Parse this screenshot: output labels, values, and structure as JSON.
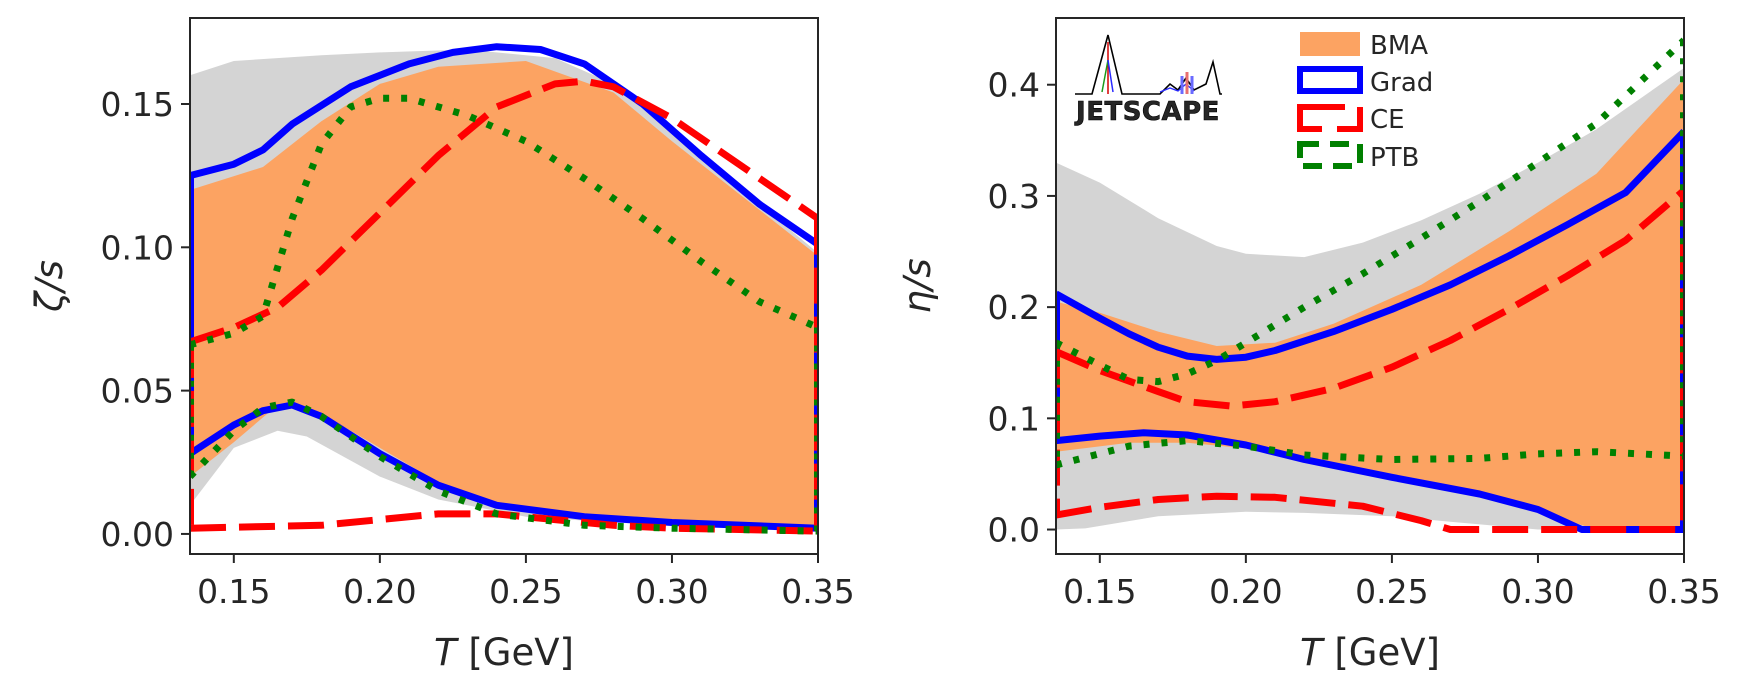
{
  "chart_data": [
    {
      "id": "zeta",
      "type": "area",
      "xlabel_var": "T",
      "xlabel_unit": " [GeV]",
      "ylabel": "ζ/s",
      "xlim": [
        0.135,
        0.35
      ],
      "ylim": [
        -0.007,
        0.18
      ],
      "xticks": [
        0.15,
        0.2,
        0.25,
        0.3,
        0.35
      ],
      "xtick_labels": [
        "0.15",
        "0.20",
        "0.25",
        "0.30",
        "0.35"
      ],
      "yticks": [
        0.0,
        0.05,
        0.1,
        0.15
      ],
      "ytick_labels": [
        "0.00",
        "0.05",
        "0.10",
        "0.15"
      ],
      "grid": false,
      "bands": [
        {
          "name": "prior",
          "color": "#d4d4d4",
          "upper": [
            [
              0.135,
              0.16
            ],
            [
              0.15,
              0.165
            ],
            [
              0.18,
              0.167
            ],
            [
              0.2,
              0.168
            ],
            [
              0.23,
              0.169
            ],
            [
              0.26,
              0.166
            ],
            [
              0.28,
              0.157
            ],
            [
              0.3,
              0.14
            ],
            [
              0.33,
              0.115
            ],
            [
              0.35,
              0.098
            ]
          ],
          "lower": [
            [
              0.135,
              0.01
            ],
            [
              0.15,
              0.03
            ],
            [
              0.165,
              0.036
            ],
            [
              0.175,
              0.034
            ],
            [
              0.2,
              0.02
            ],
            [
              0.22,
              0.012
            ],
            [
              0.25,
              0.006
            ],
            [
              0.28,
              0.004
            ],
            [
              0.3,
              0.003
            ],
            [
              0.35,
              0.002
            ]
          ]
        },
        {
          "name": "BMA",
          "color": "#fca362",
          "upper": [
            [
              0.135,
              0.12
            ],
            [
              0.16,
              0.128
            ],
            [
              0.18,
              0.144
            ],
            [
              0.2,
              0.157
            ],
            [
              0.22,
              0.163
            ],
            [
              0.25,
              0.165
            ],
            [
              0.28,
              0.154
            ],
            [
              0.3,
              0.137
            ],
            [
              0.33,
              0.113
            ],
            [
              0.35,
              0.097
            ]
          ],
          "lower": [
            [
              0.135,
              0.02
            ],
            [
              0.15,
              0.032
            ],
            [
              0.165,
              0.045
            ],
            [
              0.17,
              0.046
            ],
            [
              0.18,
              0.042
            ],
            [
              0.2,
              0.03
            ],
            [
              0.23,
              0.012
            ],
            [
              0.25,
              0.008
            ],
            [
              0.3,
              0.003
            ],
            [
              0.35,
              0.002
            ]
          ]
        }
      ],
      "series": [
        {
          "name": "Grad",
          "color": "#0000ff",
          "style": "solid",
          "upper": [
            [
              0.135,
              0.125
            ],
            [
              0.15,
              0.129
            ],
            [
              0.16,
              0.134
            ],
            [
              0.17,
              0.143
            ],
            [
              0.19,
              0.156
            ],
            [
              0.21,
              0.164
            ],
            [
              0.225,
              0.168
            ],
            [
              0.24,
              0.17
            ],
            [
              0.255,
              0.169
            ],
            [
              0.27,
              0.164
            ],
            [
              0.29,
              0.15
            ],
            [
              0.31,
              0.132
            ],
            [
              0.33,
              0.115
            ],
            [
              0.35,
              0.101
            ]
          ],
          "lower": [
            [
              0.135,
              0.028
            ],
            [
              0.15,
              0.038
            ],
            [
              0.16,
              0.043
            ],
            [
              0.17,
              0.045
            ],
            [
              0.18,
              0.041
            ],
            [
              0.2,
              0.028
            ],
            [
              0.22,
              0.017
            ],
            [
              0.24,
              0.01
            ],
            [
              0.27,
              0.006
            ],
            [
              0.3,
              0.004
            ],
            [
              0.35,
              0.002
            ]
          ]
        },
        {
          "name": "CE",
          "color": "#ff0000",
          "style": "dashed",
          "upper": [
            [
              0.135,
              0.067
            ],
            [
              0.15,
              0.072
            ],
            [
              0.165,
              0.079
            ],
            [
              0.18,
              0.092
            ],
            [
              0.2,
              0.112
            ],
            [
              0.22,
              0.132
            ],
            [
              0.24,
              0.149
            ],
            [
              0.26,
              0.157
            ],
            [
              0.27,
              0.158
            ],
            [
              0.28,
              0.156
            ],
            [
              0.3,
              0.145
            ],
            [
              0.32,
              0.131
            ],
            [
              0.35,
              0.11
            ]
          ],
          "lower": [
            [
              0.135,
              0.002
            ],
            [
              0.18,
              0.003
            ],
            [
              0.2,
              0.005
            ],
            [
              0.22,
              0.007
            ],
            [
              0.24,
              0.007
            ],
            [
              0.26,
              0.005
            ],
            [
              0.28,
              0.003
            ],
            [
              0.3,
              0.002
            ],
            [
              0.35,
              0.001
            ]
          ]
        },
        {
          "name": "PTB",
          "color": "#008000",
          "style": "dotted",
          "upper": [
            [
              0.135,
              0.066
            ],
            [
              0.15,
              0.07
            ],
            [
              0.16,
              0.076
            ],
            [
              0.17,
              0.11
            ],
            [
              0.18,
              0.136
            ],
            [
              0.19,
              0.149
            ],
            [
              0.2,
              0.152
            ],
            [
              0.21,
              0.152
            ],
            [
              0.23,
              0.146
            ],
            [
              0.25,
              0.137
            ],
            [
              0.27,
              0.124
            ],
            [
              0.29,
              0.11
            ],
            [
              0.31,
              0.095
            ],
            [
              0.33,
              0.081
            ],
            [
              0.35,
              0.072
            ]
          ],
          "lower": [
            [
              0.135,
              0.02
            ],
            [
              0.15,
              0.036
            ],
            [
              0.16,
              0.044
            ],
            [
              0.17,
              0.046
            ],
            [
              0.18,
              0.041
            ],
            [
              0.2,
              0.027
            ],
            [
              0.22,
              0.015
            ],
            [
              0.24,
              0.007
            ],
            [
              0.27,
              0.003
            ],
            [
              0.3,
              0.002
            ],
            [
              0.35,
              0.001
            ]
          ]
        }
      ]
    },
    {
      "id": "eta",
      "type": "area",
      "xlabel_var": "T",
      "xlabel_unit": " [GeV]",
      "ylabel": "η/s",
      "xlim": [
        0.135,
        0.35
      ],
      "ylim": [
        -0.022,
        0.46
      ],
      "xticks": [
        0.15,
        0.2,
        0.25,
        0.3,
        0.35
      ],
      "xtick_labels": [
        "0.15",
        "0.20",
        "0.25",
        "0.30",
        "0.35"
      ],
      "yticks": [
        0.0,
        0.1,
        0.2,
        0.3,
        0.4
      ],
      "ytick_labels": [
        "0.0",
        "0.1",
        "0.2",
        "0.3",
        "0.4"
      ],
      "grid": false,
      "legend_location": "upper center",
      "legend_entries": [
        "BMA",
        "Grad",
        "CE",
        "PTB"
      ],
      "logo_text": "JETSCAPE",
      "bands": [
        {
          "name": "prior",
          "color": "#d4d4d4",
          "upper": [
            [
              0.135,
              0.33
            ],
            [
              0.15,
              0.312
            ],
            [
              0.17,
              0.28
            ],
            [
              0.19,
              0.255
            ],
            [
              0.2,
              0.248
            ],
            [
              0.22,
              0.245
            ],
            [
              0.24,
              0.258
            ],
            [
              0.26,
              0.278
            ],
            [
              0.28,
              0.302
            ],
            [
              0.3,
              0.33
            ],
            [
              0.32,
              0.36
            ],
            [
              0.35,
              0.415
            ]
          ],
          "lower": [
            [
              0.135,
              0.0
            ],
            [
              0.145,
              0.001
            ],
            [
              0.17,
              0.012
            ],
            [
              0.2,
              0.016
            ],
            [
              0.22,
              0.015
            ],
            [
              0.25,
              0.012
            ],
            [
              0.27,
              0.007
            ],
            [
              0.3,
              0.0
            ],
            [
              0.35,
              0.0
            ]
          ]
        },
        {
          "name": "BMA",
          "color": "#fca362",
          "upper": [
            [
              0.135,
              0.205
            ],
            [
              0.15,
              0.195
            ],
            [
              0.17,
              0.178
            ],
            [
              0.19,
              0.165
            ],
            [
              0.21,
              0.168
            ],
            [
              0.23,
              0.185
            ],
            [
              0.26,
              0.22
            ],
            [
              0.29,
              0.268
            ],
            [
              0.32,
              0.32
            ],
            [
              0.35,
              0.405
            ]
          ],
          "lower": [
            [
              0.135,
              0.07
            ],
            [
              0.16,
              0.078
            ],
            [
              0.18,
              0.078
            ],
            [
              0.2,
              0.073
            ],
            [
              0.23,
              0.06
            ],
            [
              0.26,
              0.045
            ],
            [
              0.29,
              0.025
            ],
            [
              0.31,
              0.008
            ],
            [
              0.32,
              0.0
            ],
            [
              0.35,
              0.0
            ]
          ]
        }
      ],
      "series": [
        {
          "name": "Grad",
          "color": "#0000ff",
          "style": "solid",
          "upper": [
            [
              0.135,
              0.212
            ],
            [
              0.15,
              0.19
            ],
            [
              0.16,
              0.176
            ],
            [
              0.17,
              0.164
            ],
            [
              0.18,
              0.156
            ],
            [
              0.19,
              0.153
            ],
            [
              0.2,
              0.155
            ],
            [
              0.21,
              0.161
            ],
            [
              0.23,
              0.178
            ],
            [
              0.25,
              0.198
            ],
            [
              0.27,
              0.22
            ],
            [
              0.29,
              0.246
            ],
            [
              0.31,
              0.274
            ],
            [
              0.33,
              0.303
            ],
            [
              0.35,
              0.358
            ]
          ],
          "lower": [
            [
              0.135,
              0.08
            ],
            [
              0.15,
              0.084
            ],
            [
              0.165,
              0.087
            ],
            [
              0.18,
              0.085
            ],
            [
              0.2,
              0.076
            ],
            [
              0.22,
              0.063
            ],
            [
              0.25,
              0.047
            ],
            [
              0.28,
              0.032
            ],
            [
              0.3,
              0.018
            ],
            [
              0.315,
              0.0
            ],
            [
              0.35,
              0.0
            ]
          ]
        },
        {
          "name": "CE",
          "color": "#ff0000",
          "style": "dashed",
          "upper": [
            [
              0.135,
              0.16
            ],
            [
              0.15,
              0.143
            ],
            [
              0.17,
              0.124
            ],
            [
              0.18,
              0.115
            ],
            [
              0.195,
              0.111
            ],
            [
              0.21,
              0.115
            ],
            [
              0.23,
              0.127
            ],
            [
              0.25,
              0.146
            ],
            [
              0.27,
              0.17
            ],
            [
              0.29,
              0.198
            ],
            [
              0.31,
              0.228
            ],
            [
              0.33,
              0.26
            ],
            [
              0.35,
              0.305
            ]
          ],
          "lower": [
            [
              0.135,
              0.013
            ],
            [
              0.15,
              0.02
            ],
            [
              0.17,
              0.027
            ],
            [
              0.19,
              0.03
            ],
            [
              0.21,
              0.029
            ],
            [
              0.24,
              0.021
            ],
            [
              0.26,
              0.008
            ],
            [
              0.27,
              0.0
            ],
            [
              0.35,
              0.0
            ]
          ]
        },
        {
          "name": "PTB",
          "color": "#008000",
          "style": "dotted",
          "upper": [
            [
              0.135,
              0.168
            ],
            [
              0.15,
              0.148
            ],
            [
              0.16,
              0.135
            ],
            [
              0.17,
              0.133
            ],
            [
              0.18,
              0.14
            ],
            [
              0.19,
              0.152
            ],
            [
              0.2,
              0.168
            ],
            [
              0.22,
              0.2
            ],
            [
              0.24,
              0.23
            ],
            [
              0.26,
              0.262
            ],
            [
              0.28,
              0.295
            ],
            [
              0.3,
              0.33
            ],
            [
              0.32,
              0.365
            ],
            [
              0.35,
              0.44
            ]
          ],
          "lower": [
            [
              0.135,
              0.058
            ],
            [
              0.16,
              0.075
            ],
            [
              0.18,
              0.08
            ],
            [
              0.2,
              0.075
            ],
            [
              0.22,
              0.067
            ],
            [
              0.25,
              0.063
            ],
            [
              0.28,
              0.064
            ],
            [
              0.3,
              0.068
            ],
            [
              0.32,
              0.07
            ],
            [
              0.35,
              0.066
            ]
          ]
        }
      ]
    }
  ]
}
